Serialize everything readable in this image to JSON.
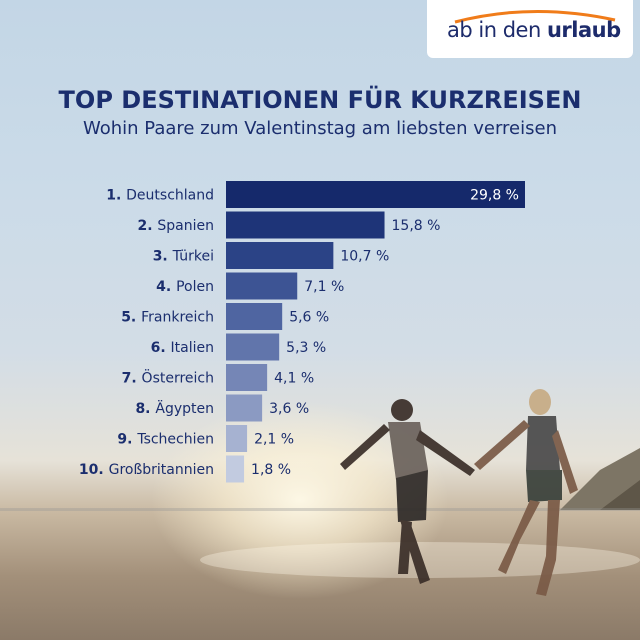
{
  "logo": {
    "prefix": "ab in den ",
    "brand": "urlaub"
  },
  "chart_data": {
    "type": "bar",
    "orientation": "horizontal",
    "title": "TOP DESTINATIONEN FÜR KURZREISEN",
    "subtitle": "Wohin Paare zum Valentinstag am liebsten verreisen",
    "ranks": [
      "1.",
      "2.",
      "3.",
      "4.",
      "5.",
      "6.",
      "7.",
      "8.",
      "9.",
      "10."
    ],
    "categories": [
      "Deutschland",
      "Spanien",
      "Türkei",
      "Polen",
      "Frankreich",
      "Italien",
      "Österreich",
      "Ägypten",
      "Tschechien",
      "Großbritannien"
    ],
    "values": [
      29.8,
      15.8,
      10.7,
      7.1,
      5.6,
      5.3,
      4.1,
      3.6,
      2.1,
      1.8
    ],
    "value_labels": [
      "29,8 %",
      "15,8 %",
      "10,7 %",
      "7,1 %",
      "5,6 %",
      "5,3 %",
      "4,1 %",
      "3,6 %",
      "2,1 %",
      "1,8 %"
    ],
    "unit": "%",
    "xlim": [
      0,
      29.8
    ],
    "colors": [
      "#15296b",
      "#1e3478",
      "#2b4386",
      "#3d5494",
      "#4f65a1",
      "#6175ab",
      "#7586b6",
      "#8b9ac2",
      "#a6b2d1",
      "#c2cbe0"
    ]
  }
}
